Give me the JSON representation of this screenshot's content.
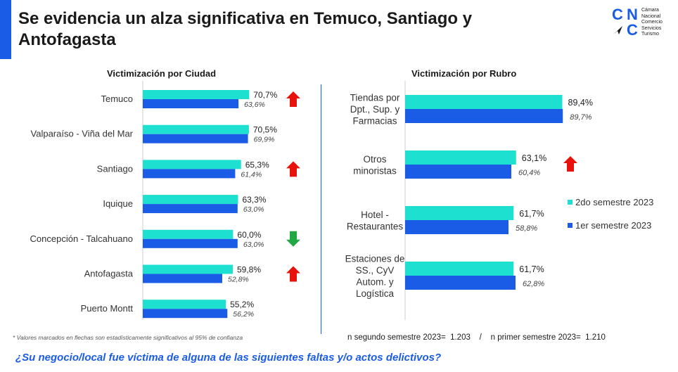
{
  "header": {
    "title": "Se evidencia un alza significativa en Temuco, Santiago y Antofagasta",
    "logo": {
      "letter_c1": "C",
      "letter_n": "N",
      "letter_c2": "C",
      "text": [
        "Cámara",
        "Nacional",
        "Comercio",
        "Servicios",
        "Turismo"
      ]
    }
  },
  "colors": {
    "series_2do": "#1ee0d0",
    "series_1er": "#1a5ce5",
    "arrow_up": "#e8120c",
    "arrow_down": "#22a843",
    "accent": "#1a5ce5"
  },
  "chart_data": [
    {
      "type": "bar",
      "orientation": "horizontal",
      "title": "Victimización por Ciudad",
      "categories": [
        "Temuco",
        "Valparaíso - Viña del Mar",
        "Santiago",
        "Iquique",
        "Concepción - Talcahuano",
        "Antofagasta",
        "Puerto Montt"
      ],
      "series": [
        {
          "name": "2do semestre 2023",
          "values": [
            70.7,
            70.5,
            65.3,
            63.3,
            60.0,
            59.8,
            55.2
          ],
          "labels": [
            "70,7%",
            "70,5%",
            "65,3%",
            "63,3%",
            "60,0%",
            "59,8%",
            "55,2%"
          ]
        },
        {
          "name": "1er semestre 2023",
          "values": [
            63.6,
            69.9,
            61.4,
            63.0,
            63.0,
            52.8,
            56.2
          ],
          "labels": [
            "63,6%",
            "69,9%",
            "61,4%",
            "63,0%",
            "63,0%",
            "52,8%",
            "56,2%"
          ]
        }
      ],
      "significance": [
        "up",
        "",
        "up",
        "",
        "down",
        "up",
        ""
      ],
      "xlim": [
        0,
        100
      ]
    },
    {
      "type": "bar",
      "orientation": "horizontal",
      "title": "Victimización por Rubro",
      "categories": [
        [
          "Tiendas por",
          "Dpt., Sup. y",
          "Farmacias"
        ],
        [
          "Otros",
          "minoristas"
        ],
        [
          "Hotel -",
          "Restaurantes"
        ],
        [
          "Estaciones de",
          "SS., CyV",
          "Autom. y",
          "Logística"
        ]
      ],
      "series": [
        {
          "name": "2do semestre 2023",
          "values": [
            89.4,
            63.1,
            61.7,
            61.7
          ],
          "labels": [
            "89,4%",
            "63,1%",
            "61,7%",
            "61,7%"
          ]
        },
        {
          "name": "1er semestre 2023",
          "values": [
            89.7,
            60.4,
            58.8,
            62.8
          ],
          "labels": [
            "89,7%",
            "60,4%",
            "58,8%",
            "62,8%"
          ]
        }
      ],
      "significance": [
        "",
        "up",
        "",
        ""
      ],
      "legend": [
        "2do semestre 2023",
        "1er semestre 2023"
      ],
      "legend_position": "right",
      "xlim": [
        0,
        100
      ]
    }
  ],
  "footnote": "* Valores marcados en flechas son estadísticamente significativos al 95% de confianza",
  "sample_note": "n segundo semestre 2023=  1.203    /    n primer semestre 2023=  1.210",
  "question": "¿Su negocio/local fue víctima de alguna de las siguientes faltas y/o actos delictivos?"
}
